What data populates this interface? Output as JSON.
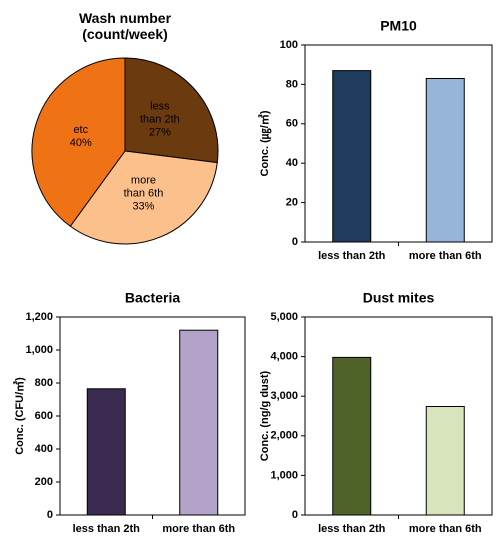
{
  "chart_data": [
    {
      "type": "pie",
      "title": "Wash number (count/week)",
      "categories": [
        "less than 2th",
        "more than 6th",
        "etc"
      ],
      "values": [
        27,
        33,
        40
      ],
      "value_labels": [
        "27%",
        "33%",
        "40%"
      ],
      "colors": [
        "#6b3a0e",
        "#fcc08c",
        "#ef7215"
      ]
    },
    {
      "type": "bar",
      "title": "PM10",
      "ylabel": "Conc. (㎍/㎥)",
      "categories": [
        "less than 2th",
        "more than 6th"
      ],
      "values": [
        87,
        83
      ],
      "colors": [
        "#1f3b5e",
        "#97b5da"
      ],
      "ylim": [
        0,
        100
      ],
      "yticks": [
        0,
        20,
        40,
        60,
        80,
        100
      ]
    },
    {
      "type": "bar",
      "title": "Bacteria",
      "ylabel": "Conc. (CFU/㎥)",
      "categories": [
        "less than 2th",
        "more than 6th"
      ],
      "values": [
        765,
        1120
      ],
      "colors": [
        "#3b2b50",
        "#b3a3c8"
      ],
      "ylim": [
        0,
        1200
      ],
      "yticks": [
        0,
        200,
        400,
        600,
        800,
        {
          "value": 1000,
          "label": "1,000"
        },
        {
          "value": 1200,
          "label": "1,200"
        }
      ]
    },
    {
      "type": "bar",
      "title": "Dust mites",
      "ylabel": "Conc. (ng/g dust)",
      "categories": [
        "less than 2th",
        "more than 6th"
      ],
      "values": [
        3980,
        2740
      ],
      "colors": [
        "#4f6228",
        "#d7e4bc"
      ],
      "ylim": [
        0,
        5000
      ],
      "yticks": [
        0,
        {
          "value": 1000,
          "label": "1,000"
        },
        {
          "value": 2000,
          "label": "2,000"
        },
        {
          "value": 3000,
          "label": "3,000"
        },
        {
          "value": 4000,
          "label": "4,000"
        },
        {
          "value": 5000,
          "label": "5,000"
        }
      ]
    }
  ]
}
